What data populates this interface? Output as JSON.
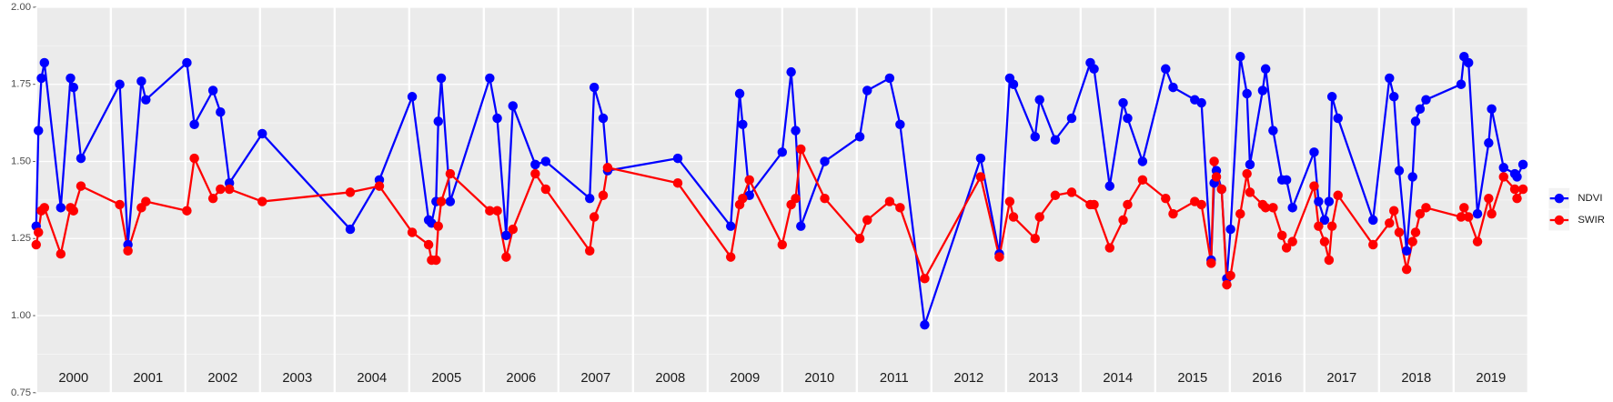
{
  "chart_data": {
    "type": "line",
    "x": [
      2000.0,
      2000.03,
      2000.07,
      2000.11,
      2000.33,
      2000.46,
      2000.5,
      2000.6,
      2001.12,
      2001.23,
      2001.41,
      2001.47,
      2002.02,
      2002.12,
      2002.37,
      2002.47,
      2002.59,
      2003.03,
      2004.21,
      2004.6,
      2005.04,
      2005.26,
      2005.3,
      2005.36,
      2005.39,
      2005.43,
      2005.55,
      2006.08,
      2006.18,
      2006.3,
      2006.39,
      2006.69,
      2006.83,
      2007.42,
      2007.48,
      2007.6,
      2007.66,
      2008.6,
      2009.31,
      2009.43,
      2009.47,
      2009.56,
      2010.0,
      2010.12,
      2010.18,
      2010.25,
      2010.57,
      2011.04,
      2011.14,
      2011.44,
      2011.58,
      2011.91,
      2012.66,
      2012.91,
      2013.05,
      2013.1,
      2013.39,
      2013.45,
      2013.66,
      2013.88,
      2014.13,
      2014.18,
      2014.39,
      2014.57,
      2014.63,
      2014.83,
      2015.14,
      2015.24,
      2015.53,
      2015.62,
      2015.75,
      2015.79,
      2015.82,
      2015.89,
      2015.96,
      2016.01,
      2016.14,
      2016.23,
      2016.27,
      2016.44,
      2016.48,
      2016.58,
      2016.7,
      2016.76,
      2016.84,
      2017.13,
      2017.19,
      2017.27,
      2017.33,
      2017.37,
      2017.45,
      2017.92,
      2018.14,
      2018.2,
      2018.27,
      2018.37,
      2018.45,
      2018.49,
      2018.55,
      2018.63,
      2019.1,
      2019.14,
      2019.2,
      2019.32,
      2019.47,
      2019.51,
      2019.67,
      2019.82,
      2019.85,
      2019.93
    ],
    "series": [
      {
        "name": "NDVI",
        "color": "#0000ff",
        "values": [
          1.29,
          1.6,
          1.77,
          1.82,
          1.35,
          1.77,
          1.74,
          1.51,
          1.75,
          1.23,
          1.76,
          1.7,
          1.82,
          1.62,
          1.73,
          1.66,
          1.43,
          1.59,
          1.28,
          1.44,
          1.71,
          1.31,
          1.3,
          1.37,
          1.63,
          1.77,
          1.37,
          1.77,
          1.64,
          1.26,
          1.68,
          1.49,
          1.5,
          1.38,
          1.74,
          1.64,
          1.47,
          1.51,
          1.29,
          1.72,
          1.62,
          1.39,
          1.53,
          1.79,
          1.6,
          1.29,
          1.5,
          1.58,
          1.73,
          1.77,
          1.62,
          0.97,
          1.51,
          1.2,
          1.77,
          1.75,
          1.58,
          1.7,
          1.57,
          1.64,
          1.82,
          1.8,
          1.42,
          1.69,
          1.64,
          1.5,
          1.8,
          1.74,
          1.7,
          1.69,
          1.18,
          1.43,
          1.47,
          1.41,
          1.12,
          1.28,
          1.84,
          1.72,
          1.49,
          1.73,
          1.8,
          1.6,
          1.44,
          1.44,
          1.35,
          1.53,
          1.37,
          1.31,
          1.37,
          1.71,
          1.64,
          1.31,
          1.77,
          1.71,
          1.47,
          1.21,
          1.45,
          1.63,
          1.67,
          1.7,
          1.75,
          1.84,
          1.82,
          1.33,
          1.56,
          1.67,
          1.48,
          1.46,
          1.45,
          1.49
        ]
      },
      {
        "name": "SWIR",
        "color": "#ff0000",
        "values": [
          1.23,
          1.27,
          1.34,
          1.35,
          1.2,
          1.35,
          1.34,
          1.42,
          1.36,
          1.21,
          1.35,
          1.37,
          1.34,
          1.51,
          1.38,
          1.41,
          1.41,
          1.37,
          1.4,
          1.42,
          1.27,
          1.23,
          1.18,
          1.18,
          1.29,
          1.37,
          1.46,
          1.34,
          1.34,
          1.19,
          1.28,
          1.46,
          1.41,
          1.21,
          1.32,
          1.39,
          1.48,
          1.43,
          1.19,
          1.36,
          1.38,
          1.44,
          1.23,
          1.36,
          1.38,
          1.54,
          1.38,
          1.25,
          1.31,
          1.37,
          1.35,
          1.12,
          1.45,
          1.19,
          1.37,
          1.32,
          1.25,
          1.32,
          1.39,
          1.4,
          1.36,
          1.36,
          1.22,
          1.31,
          1.36,
          1.44,
          1.38,
          1.33,
          1.37,
          1.36,
          1.17,
          1.5,
          1.45,
          1.41,
          1.1,
          1.13,
          1.33,
          1.46,
          1.4,
          1.36,
          1.35,
          1.35,
          1.26,
          1.22,
          1.24,
          1.42,
          1.29,
          1.24,
          1.18,
          1.29,
          1.39,
          1.23,
          1.3,
          1.34,
          1.27,
          1.15,
          1.24,
          1.27,
          1.33,
          1.35,
          1.32,
          1.35,
          1.32,
          1.24,
          1.38,
          1.33,
          1.45,
          1.41,
          1.38,
          1.41
        ]
      }
    ],
    "xlim": [
      2000,
      2020
    ],
    "xticks": [
      {
        "value": 2000.5,
        "label": "2000"
      },
      {
        "value": 2001.5,
        "label": "2001"
      },
      {
        "value": 2002.5,
        "label": "2002"
      },
      {
        "value": 2003.5,
        "label": "2003"
      },
      {
        "value": 2004.5,
        "label": "2004"
      },
      {
        "value": 2005.5,
        "label": "2005"
      },
      {
        "value": 2006.5,
        "label": "2006"
      },
      {
        "value": 2007.5,
        "label": "2007"
      },
      {
        "value": 2008.5,
        "label": "2008"
      },
      {
        "value": 2009.5,
        "label": "2009"
      },
      {
        "value": 2010.5,
        "label": "2010"
      },
      {
        "value": 2011.5,
        "label": "2011"
      },
      {
        "value": 2012.5,
        "label": "2012"
      },
      {
        "value": 2013.5,
        "label": "2013"
      },
      {
        "value": 2014.5,
        "label": "2014"
      },
      {
        "value": 2015.5,
        "label": "2015"
      },
      {
        "value": 2016.5,
        "label": "2016"
      },
      {
        "value": 2017.5,
        "label": "2017"
      },
      {
        "value": 2018.5,
        "label": "2018"
      },
      {
        "value": 2019.5,
        "label": "2019"
      }
    ],
    "ylim": [
      0.75,
      2.0
    ],
    "yticks": [
      {
        "value": 0.75,
        "label": "0.75"
      },
      {
        "value": 1.0,
        "label": "1.00"
      },
      {
        "value": 1.25,
        "label": "1.25"
      },
      {
        "value": 1.5,
        "label": "1.50"
      },
      {
        "value": 1.75,
        "label": "1.75"
      },
      {
        "value": 2.0,
        "label": "2.00"
      }
    ],
    "grid": true,
    "legend": "right"
  }
}
